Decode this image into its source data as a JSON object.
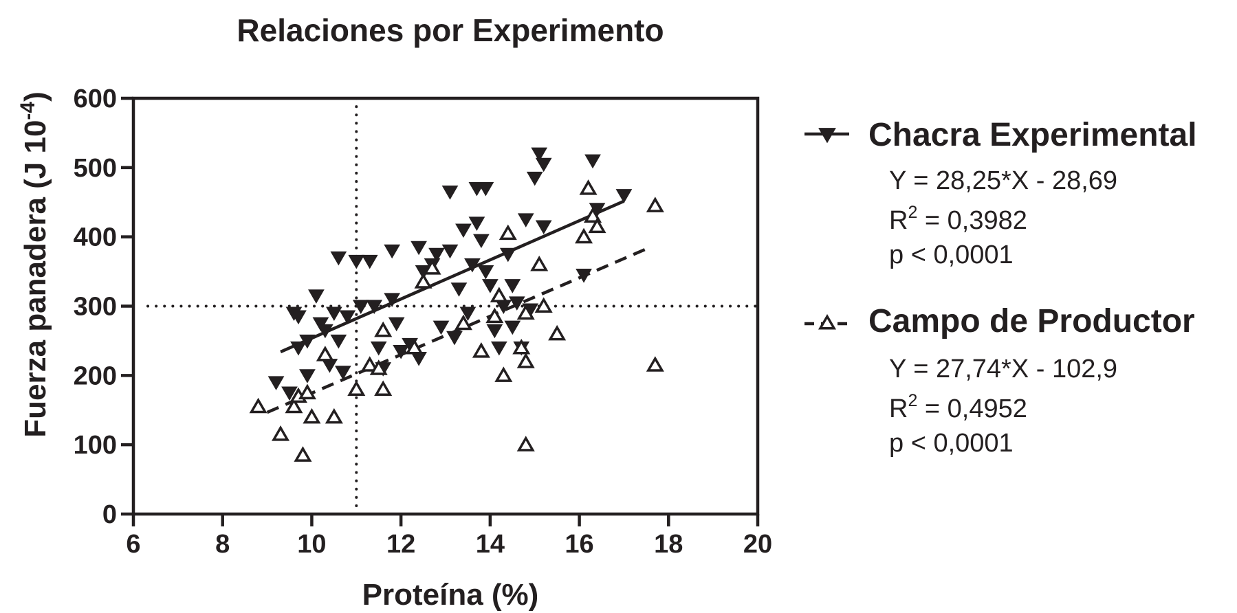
{
  "chart_data": {
    "type": "scatter",
    "title": "Relaciones por Experimento",
    "xlabel": "Proteína (%)",
    "ylabel": "Fuerza panadera (J 10",
    "ylabel_sup": "-4",
    "ylabel_close": ")",
    "xlim": [
      6,
      20
    ],
    "ylim": [
      0,
      600
    ],
    "xticks": [
      6,
      8,
      10,
      12,
      14,
      16,
      18,
      20
    ],
    "yticks": [
      0,
      100,
      200,
      300,
      400,
      500,
      600
    ],
    "grid": false,
    "legend_position": "right",
    "reference_lines": {
      "x": 11,
      "y": 300,
      "style": "dotted"
    },
    "series": [
      {
        "name": "Chacra Experimental",
        "marker": "filled-down-triangle",
        "line_style": "solid",
        "equation": "Y = 28,25*X - 28,69",
        "r2_prefix": "R",
        "r2_sup": "2",
        "r2_value": " = 0,3982",
        "p_value": "p < 0,0001",
        "fit": {
          "slope": 28.25,
          "intercept": -28.69,
          "x_range": [
            9.3,
            17.0
          ]
        },
        "points": [
          [
            9.6,
            290
          ],
          [
            9.7,
            285
          ],
          [
            9.7,
            240
          ],
          [
            9.9,
            200
          ],
          [
            10.1,
            315
          ],
          [
            10.2,
            275
          ],
          [
            10.3,
            265
          ],
          [
            10.4,
            215
          ],
          [
            10.5,
            290
          ],
          [
            10.6,
            250
          ],
          [
            10.6,
            370
          ],
          [
            10.7,
            205
          ],
          [
            10.8,
            285
          ],
          [
            11.0,
            365
          ],
          [
            11.1,
            300
          ],
          [
            11.3,
            365
          ],
          [
            11.4,
            300
          ],
          [
            11.5,
            240
          ],
          [
            11.6,
            210
          ],
          [
            11.8,
            380
          ],
          [
            11.8,
            310
          ],
          [
            11.9,
            275
          ],
          [
            12.0,
            235
          ],
          [
            12.2,
            245
          ],
          [
            12.4,
            225
          ],
          [
            12.4,
            385
          ],
          [
            12.5,
            350
          ],
          [
            12.7,
            360
          ],
          [
            12.8,
            375
          ],
          [
            12.9,
            270
          ],
          [
            13.1,
            465
          ],
          [
            13.1,
            380
          ],
          [
            13.2,
            255
          ],
          [
            13.3,
            325
          ],
          [
            13.4,
            410
          ],
          [
            13.5,
            290
          ],
          [
            13.6,
            360
          ],
          [
            13.7,
            470
          ],
          [
            13.7,
            420
          ],
          [
            13.8,
            395
          ],
          [
            13.9,
            470
          ],
          [
            13.9,
            350
          ],
          [
            14.0,
            330
          ],
          [
            14.1,
            265
          ],
          [
            14.2,
            240
          ],
          [
            14.3,
            300
          ],
          [
            14.4,
            375
          ],
          [
            14.5,
            330
          ],
          [
            14.5,
            270
          ],
          [
            14.6,
            305
          ],
          [
            14.7,
            240
          ],
          [
            14.8,
            425
          ],
          [
            14.9,
            295
          ],
          [
            15.0,
            485
          ],
          [
            15.1,
            520
          ],
          [
            15.2,
            505
          ],
          [
            15.2,
            415
          ],
          [
            16.1,
            345
          ],
          [
            16.3,
            510
          ],
          [
            16.4,
            440
          ],
          [
            17.0,
            460
          ],
          [
            9.2,
            190
          ],
          [
            9.5,
            175
          ],
          [
            9.9,
            250
          ]
        ]
      },
      {
        "name": "Campo de Productor",
        "marker": "open-up-triangle",
        "line_style": "dashed",
        "equation": "Y = 27,74*X - 102,9",
        "r2_prefix": "R",
        "r2_sup": "2",
        "r2_value": " = 0,4952",
        "p_value": "p < 0,0001",
        "fit": {
          "slope": 27.74,
          "intercept": -102.9,
          "x_range": [
            9.0,
            17.5
          ]
        },
        "points": [
          [
            8.8,
            155
          ],
          [
            9.3,
            115
          ],
          [
            9.6,
            155
          ],
          [
            9.7,
            170
          ],
          [
            9.8,
            85
          ],
          [
            9.9,
            175
          ],
          [
            10.0,
            140
          ],
          [
            10.3,
            230
          ],
          [
            10.5,
            140
          ],
          [
            11.0,
            180
          ],
          [
            11.3,
            215
          ],
          [
            11.5,
            210
          ],
          [
            11.6,
            180
          ],
          [
            11.6,
            265
          ],
          [
            12.3,
            240
          ],
          [
            12.5,
            335
          ],
          [
            12.7,
            355
          ],
          [
            13.4,
            275
          ],
          [
            13.8,
            235
          ],
          [
            14.1,
            285
          ],
          [
            14.2,
            315
          ],
          [
            14.3,
            200
          ],
          [
            14.4,
            405
          ],
          [
            14.7,
            240
          ],
          [
            14.8,
            290
          ],
          [
            14.8,
            220
          ],
          [
            14.8,
            100
          ],
          [
            15.1,
            360
          ],
          [
            15.2,
            300
          ],
          [
            15.5,
            260
          ],
          [
            16.2,
            470
          ],
          [
            16.3,
            430
          ],
          [
            16.4,
            415
          ],
          [
            16.1,
            400
          ],
          [
            17.7,
            445
          ],
          [
            17.7,
            215
          ]
        ]
      }
    ]
  }
}
